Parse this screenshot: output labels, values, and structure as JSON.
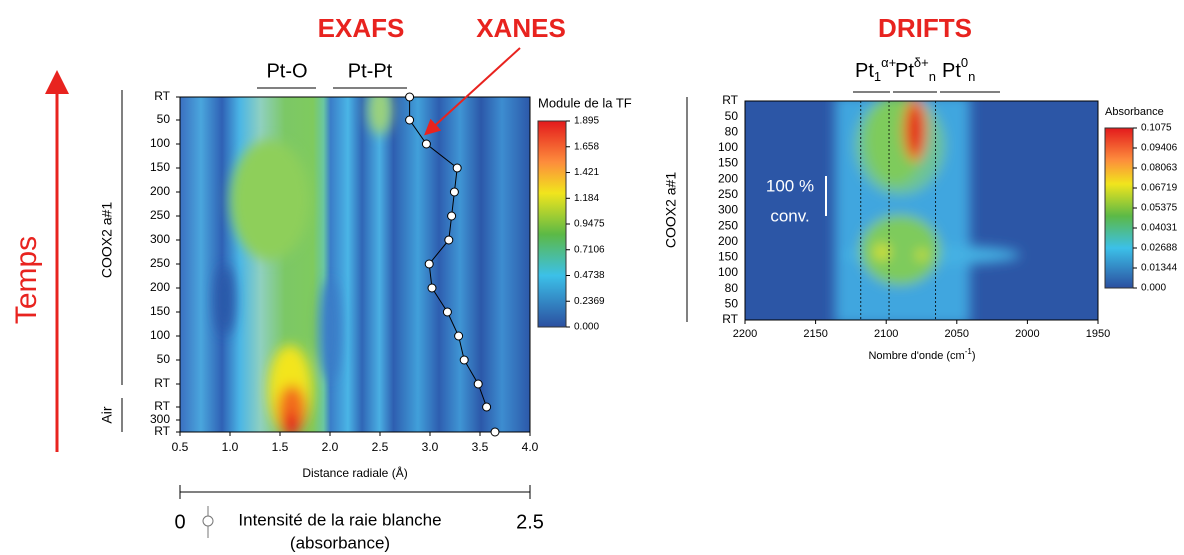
{
  "annotations": {
    "exafs": "EXAFS",
    "xanes": "XANES",
    "drifts": "DRIFTS",
    "time": "Temps"
  },
  "chart_data": [
    {
      "type": "heatmap",
      "xlabel": "Distance radiale (Å)",
      "xlim": [
        0.5,
        4.0
      ],
      "xticks": [
        0.5,
        {
          "value": 1,
          "label": "1.0"
        },
        1.5,
        {
          "value": 2,
          "label": "2.0"
        },
        2.5,
        {
          "value": 3,
          "label": "3.0"
        },
        3.5,
        {
          "value": 4,
          "label": "4.0"
        }
      ],
      "categories": [
        "RT",
        "50",
        "100",
        "150",
        "200",
        "250",
        "300",
        "250",
        "200",
        "150",
        "100",
        "50",
        "RT",
        "RT",
        "300",
        "RT"
      ],
      "groups": [
        "COOX2 a#1",
        "Air"
      ],
      "peaks": [
        "Pt-O",
        "Pt-Pt"
      ],
      "colorbar": {
        "title": "Module de la TF",
        "lim": [
          0,
          1.895
        ],
        "ticks": [
          1.895,
          1.658,
          1.421,
          1.184,
          0.9475,
          0.7106,
          0.4738,
          0.2369,
          {
            "value": 0,
            "label": "0.000"
          }
        ]
      }
    },
    {
      "type": "line",
      "xlabel": "Intensité de la raie blanche",
      "xlabel2": "(absorbance)",
      "xlim": [
        0,
        2.5
      ],
      "xticks": [
        0,
        2.5
      ],
      "color": "#000000",
      "values": [
        1.64,
        1.64,
        1.76,
        1.98,
        1.96,
        1.94,
        1.92,
        1.78,
        1.8,
        1.91,
        1.99,
        2.03,
        2.13,
        2.19,
        null,
        2.25
      ]
    },
    {
      "type": "heatmap",
      "xlabel": [
        "Nombre d'onde (cm",
        "-1",
        ")"
      ],
      "xlim": [
        2200,
        1950
      ],
      "xticks": [
        2200,
        2150,
        2100,
        2050,
        2000,
        1950
      ],
      "categories": [
        "RT",
        "50",
        "80",
        "100",
        "150",
        "200",
        "250",
        "300",
        "250",
        "200",
        "150",
        "100",
        "80",
        "50",
        "RT"
      ],
      "group": "COOX2 a#1",
      "species": [
        {
          "base": "Pt",
          "sub": "1",
          "sup": "α+"
        },
        {
          "base": "Pt",
          "sup": "δ+",
          "sub": "n"
        },
        {
          "base": "Pt",
          "sup": "0",
          "sub": "n"
        }
      ],
      "species_edges": [
        2118,
        2098,
        2065
      ],
      "annotation": [
        "100 %",
        "conv."
      ],
      "colorbar": {
        "title": "Absorbance",
        "lim": [
          0,
          0.1075
        ],
        "ticks": [
          0.1075,
          0.09406,
          0.08063,
          0.06719,
          0.05375,
          0.04031,
          0.02688,
          0.01344,
          {
            "value": 0,
            "label": "0.000"
          }
        ]
      }
    }
  ]
}
